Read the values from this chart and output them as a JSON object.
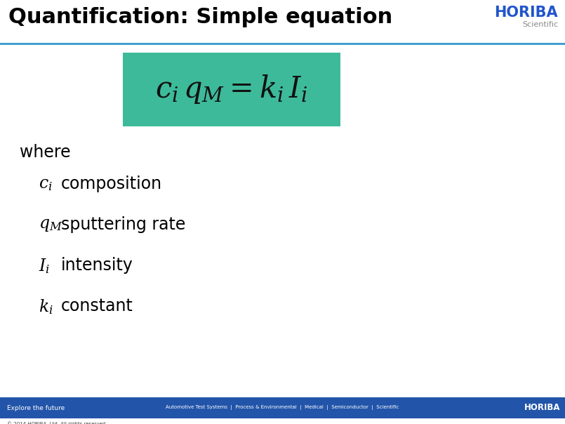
{
  "title": "Quantification: Simple equation",
  "title_fontsize": 22,
  "title_color": "#000000",
  "bg_color": "#ffffff",
  "header_line_color": "#3399cc",
  "equation_box_color": "#3dba9a",
  "equation_fontsize": 30,
  "where_text": "where",
  "where_fontsize": 17,
  "bullets": [
    {
      "symbol": "c_i",
      "desc": "composition"
    },
    {
      "symbol": "q_M",
      "desc": "sputtering rate"
    },
    {
      "symbol": "I_i",
      "desc": "intensity"
    },
    {
      "symbol": "k_i",
      "desc": "constant"
    }
  ],
  "bullet_fontsize": 17,
  "footer_bg": "#2255aa",
  "footer_text_left": "Explore the future",
  "footer_text_center": "Automotive Test Systems  |  Process & Environmental  |  Medical  |  Semiconductor  |  Scientific",
  "footer_text_right": "HORIBA",
  "footer_copyright": "© 2014 HORIBA, Ltd. All rights reserved.",
  "footer_color": "#ffffff",
  "horiba_top_color": "#2255cc",
  "scientific_color": "#888888",
  "horiba_footer_color": "#ffffff"
}
